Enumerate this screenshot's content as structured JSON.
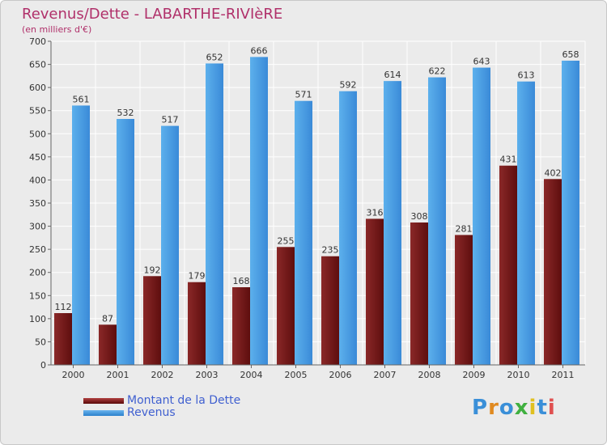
{
  "title": "Revenus/Dette - LABARTHE-RIVIèRE",
  "subtitle": "(en milliers d'€)",
  "colors": {
    "title": "#b0306a",
    "dette": "#7a1c1c",
    "revenus": "#4a9fe0",
    "legend_text": "#4060d0",
    "grid": "#ffffff",
    "background": "#ebebeb"
  },
  "chart_data": {
    "type": "bar",
    "categories": [
      "2000",
      "2001",
      "2002",
      "2003",
      "2004",
      "2005",
      "2006",
      "2007",
      "2008",
      "2009",
      "2010",
      "2011"
    ],
    "series": [
      {
        "name": "Montant de la Dette",
        "values": [
          112,
          87,
          192,
          179,
          168,
          255,
          235,
          316,
          308,
          281,
          431,
          402
        ]
      },
      {
        "name": "Revenus",
        "values": [
          561,
          532,
          517,
          652,
          666,
          571,
          592,
          614,
          622,
          643,
          613,
          658
        ]
      }
    ],
    "ylim": [
      0,
      700
    ],
    "yticks": [
      0,
      50,
      100,
      150,
      200,
      250,
      300,
      350,
      400,
      450,
      500,
      550,
      600,
      650,
      700
    ],
    "grid": true,
    "legend_position": "bottom-left"
  },
  "legend": {
    "dette_label": "Montant de la Dette",
    "revenus_label": "Revenus"
  },
  "logo": {
    "letters": [
      "P",
      "r",
      "o",
      "x",
      "i",
      "t",
      "i"
    ],
    "colors": [
      "#3a8fd8",
      "#e08a20",
      "#3a8fd8",
      "#40b040",
      "#e0c020",
      "#3a8fd8",
      "#e05050"
    ]
  }
}
